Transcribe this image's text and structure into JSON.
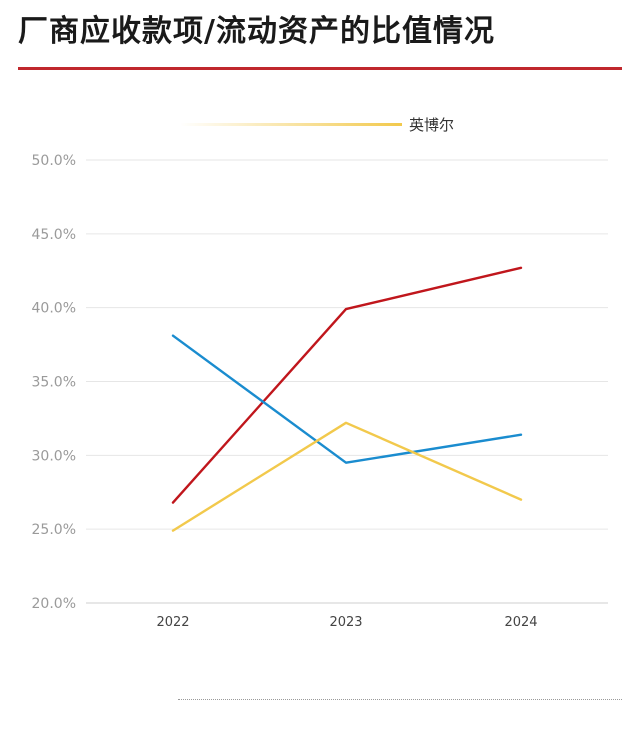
{
  "page": {
    "title": "厂商应收款项/流动资产的比值情况",
    "accent_color": "#c0282d"
  },
  "chart_data": {
    "type": "line",
    "title": "厂商应收款项/流动资产的比值情况",
    "categories": [
      "2022",
      "2023",
      "2024"
    ],
    "ylim": [
      20,
      50
    ],
    "y_ticks": [
      "20.0%",
      "25.0%",
      "30.0%",
      "35.0%",
      "40.0%",
      "45.0%",
      "50.0%"
    ],
    "y_tick_values": [
      20,
      25,
      30,
      35,
      40,
      45,
      50
    ],
    "grid": true,
    "legend_position": "top-center",
    "series": [
      {
        "key": "red",
        "name": "",
        "color": "#c0161c",
        "values": [
          26.8,
          39.9,
          42.7
        ]
      },
      {
        "key": "blue",
        "name": "",
        "color": "#1a8ccf",
        "values": [
          38.1,
          29.5,
          31.4
        ]
      },
      {
        "key": "yellow",
        "name": "英博尔",
        "color": "#f2c94c",
        "values": [
          24.9,
          32.2,
          27.0
        ]
      }
    ]
  }
}
